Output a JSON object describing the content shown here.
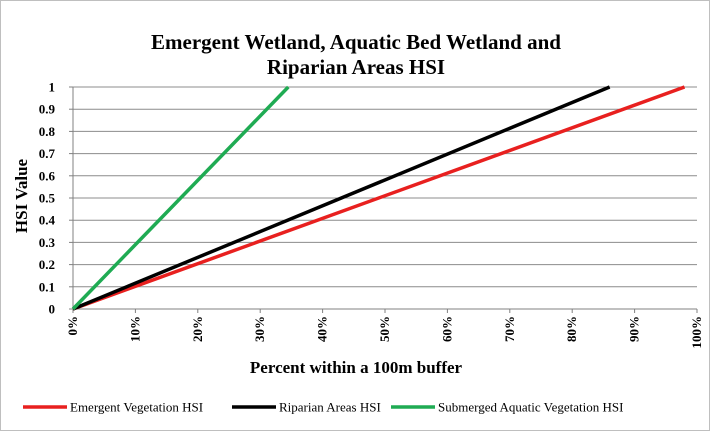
{
  "chart_data": {
    "type": "line",
    "title_lines": [
      "Emergent Wetland, Aquatic Bed Wetland and",
      "Riparian Areas HSI"
    ],
    "xlabel": "Percent within a 100m buffer",
    "ylabel": "HSI Value",
    "xlim": [
      0,
      1
    ],
    "ylim": [
      0,
      1
    ],
    "x_ticks": [
      0,
      0.1,
      0.2,
      0.3,
      0.4,
      0.5,
      0.6,
      0.7,
      0.8,
      0.9,
      1.0
    ],
    "x_tick_labels": [
      "0%",
      "10%",
      "20%",
      "30%",
      "40%",
      "50%",
      "60%",
      "70%",
      "80%",
      "90%",
      "100%"
    ],
    "y_ticks": [
      0,
      0.1,
      0.2,
      0.3,
      0.4,
      0.5,
      0.6,
      0.7,
      0.8,
      0.9,
      1
    ],
    "y_tick_labels": [
      "0",
      "0.1",
      "0.2",
      "0.3",
      "0.4",
      "0.5",
      "0.6",
      "0.7",
      "0.8",
      "0.9",
      "1"
    ],
    "grid": "horizontal",
    "legend_position": "bottom",
    "series": [
      {
        "name": "Emergent Vegetation HSI",
        "color": "#e8201f",
        "x": [
          0,
          0.98
        ],
        "y": [
          0,
          1
        ]
      },
      {
        "name": "Riparian Areas HSI",
        "color": "#000000",
        "x": [
          0,
          0.86
        ],
        "y": [
          0,
          1
        ]
      },
      {
        "name": "Submerged Aquatic Vegetation HSI",
        "color": "#1fab53",
        "x": [
          0,
          0.345
        ],
        "y": [
          0,
          1
        ]
      }
    ]
  }
}
